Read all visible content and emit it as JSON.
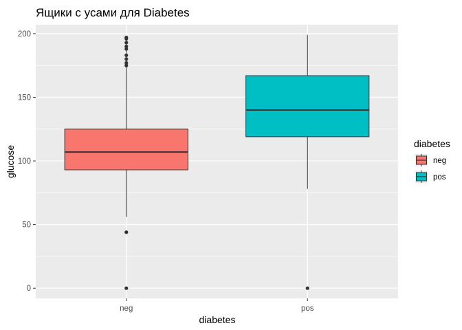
{
  "chart_data": {
    "type": "boxplot",
    "title": "Ящики с усами для Diabetes",
    "xlabel": "diabetes",
    "ylabel": "glucose",
    "ylim": [
      -8,
      207
    ],
    "yticks": [
      0,
      50,
      100,
      150,
      200
    ],
    "categories": [
      "neg",
      "pos"
    ],
    "grid": true,
    "legend": {
      "title": "diabetes",
      "position": "right",
      "entries": [
        "neg",
        "pos"
      ]
    },
    "colors": {
      "neg": "#f8766d",
      "pos": "#00bfc4",
      "panel": "#ebebeb",
      "grid": "#ffffff"
    },
    "boxes": [
      {
        "name": "neg",
        "whisker_low": 56,
        "q1": 93,
        "median": 107,
        "q3": 125,
        "whisker_high": 197,
        "outliers": [
          175,
          177,
          180,
          183,
          188,
          190,
          193,
          196,
          197,
          44,
          0
        ]
      },
      {
        "name": "pos",
        "whisker_low": 78,
        "q1": 119,
        "median": 140,
        "q3": 167,
        "whisker_high": 199,
        "outliers": [
          0
        ]
      }
    ]
  }
}
